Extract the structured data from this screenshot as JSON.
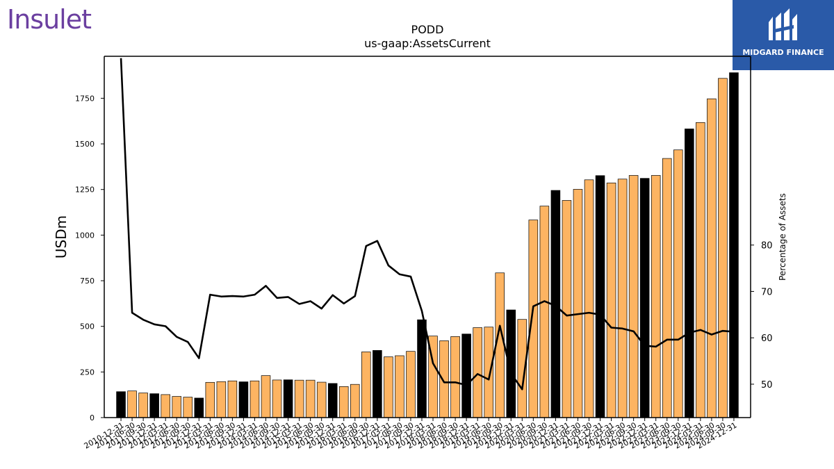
{
  "branding": {
    "left_logo": "Insulet",
    "right_logo": "MIDGARD FINANCE",
    "right_logo_bg": "#2a5aa8",
    "left_logo_color": "#6b3fa0"
  },
  "chart_data": {
    "type": "bar",
    "title": "PODD",
    "subtitle": "us-gaap:AssetsCurrent",
    "ylabel": "USDm",
    "y2label": "Percentage of Assets",
    "ylim": [
      0,
      1980
    ],
    "y2lim": [
      42.8,
      120.7
    ],
    "yticks": [
      0,
      250,
      500,
      750,
      1000,
      1250,
      1500,
      1750
    ],
    "y2ticks": [
      50,
      60,
      70,
      80
    ],
    "colors": {
      "annual": "#000000",
      "quarterly": "#fdb462",
      "line": "#000000"
    },
    "categories": [
      "2010-12-31",
      "2011-06-30",
      "2011-09-30",
      "2011-12-31",
      "2012-03-31",
      "2012-06-30",
      "2012-09-30",
      "2012-12-31",
      "2013-03-31",
      "2013-06-30",
      "2013-09-30",
      "2013-12-31",
      "2014-03-31",
      "2014-06-30",
      "2014-09-30",
      "2014-12-31",
      "2015-03-31",
      "2015-06-30",
      "2015-09-30",
      "2015-12-31",
      "2016-03-31",
      "2016-06-30",
      "2016-09-30",
      "2016-12-31",
      "2017-03-31",
      "2017-06-30",
      "2017-09-30",
      "2017-12-31",
      "2018-03-31",
      "2018-06-30",
      "2018-09-30",
      "2018-12-31",
      "2019-03-31",
      "2019-06-30",
      "2019-09-30",
      "2019-12-31",
      "2020-03-31",
      "2020-06-30",
      "2020-09-30",
      "2020-12-31",
      "2021-03-31",
      "2021-06-30",
      "2021-09-30",
      "2021-12-31",
      "2022-03-31",
      "2022-06-30",
      "2022-09-30",
      "2022-12-31",
      "2023-03-31",
      "2023-06-30",
      "2023-09-30",
      "2023-12-31",
      "2024-03-31",
      "2024-06-30",
      "2024-09-30",
      "2024-12-31"
    ],
    "x_tick_labels": [
      "2010-12-31",
      "2011-06-30",
      "2011-09-30",
      "2011-12-31",
      "2012-03-31",
      "2012-06-30",
      "2012-09-30",
      "2012-12-31",
      "2013-03-31",
      "2013-06-30",
      "2013-09-30",
      "2013-12-31",
      "2014-03-31",
      "2014-06-30",
      "2014-09-30",
      "2014-12-31",
      "2015-03-31",
      "2015-06-30",
      "2015-09-30",
      "2015-12-31",
      "2016-03-31",
      "2016-06-30",
      "2016-09-30",
      "2016-12-31",
      "2017-03-31",
      "2017-06-30",
      "2017-09-30",
      "2017-12-31",
      "2018-03-31",
      "2018-06-30",
      "2018-09-30",
      "2018-12-31",
      "2019-03-31",
      "2019-06-30",
      "2019-09-30",
      "2019-12-31",
      "2020-03-31",
      "2020-06-30",
      "2020-09-30",
      "2020-12-31",
      "2021-03-31",
      "2021-06-30",
      "2021-09-30",
      "2021-12-31",
      "2022-03-31",
      "2022-06-30",
      "2022-09-30",
      "2022-12-31",
      "2023-03-31",
      "2023-06-30",
      "2023-09-30",
      "2023-12-31",
      "2024-03-31",
      "2024-06-30",
      "2024-09-30",
      "2024-12-31"
    ],
    "is_annual": [
      true,
      false,
      false,
      true,
      false,
      false,
      false,
      true,
      false,
      false,
      false,
      true,
      false,
      false,
      false,
      true,
      false,
      false,
      false,
      true,
      false,
      false,
      false,
      true,
      false,
      false,
      false,
      true,
      false,
      false,
      false,
      true,
      false,
      false,
      false,
      true,
      false,
      false,
      false,
      true,
      false,
      false,
      false,
      true,
      false,
      false,
      false,
      true,
      false,
      false,
      false,
      true,
      false,
      false,
      false,
      true
    ],
    "series": [
      {
        "name": "AssetsCurrent",
        "values": [
          142,
          146,
          135,
          131,
          126,
          116,
          112,
          107,
          193,
          197,
          201,
          196,
          201,
          230,
          206,
          207,
          205,
          205,
          194,
          187,
          170,
          182,
          360,
          368,
          333,
          339,
          363,
          536,
          447,
          421,
          444,
          458,
          493,
          496,
          793,
          590,
          538,
          1083,
          1159,
          1245,
          1190,
          1251,
          1303,
          1326,
          1286,
          1307,
          1327,
          1311,
          1327,
          1420,
          1467,
          1582,
          1617,
          1747,
          1859,
          1890
        ]
      },
      {
        "name": "Percentage of Assets",
        "axis": "right",
        "values": [
          120.3,
          65.4,
          63.9,
          62.9,
          62.5,
          60.2,
          59.1,
          55.6,
          69.3,
          68.9,
          69.0,
          68.9,
          69.3,
          71.2,
          68.6,
          68.8,
          67.3,
          67.9,
          66.3,
          69.2,
          67.4,
          69.0,
          79.8,
          80.9,
          75.6,
          73.7,
          73.2,
          65.8,
          54.5,
          50.4,
          50.4,
          49.8,
          52.2,
          51.0,
          62.6,
          52.3,
          48.9,
          66.8,
          67.9,
          66.9,
          64.8,
          65.1,
          65.4,
          65.0,
          62.2,
          62.0,
          61.4,
          58.3,
          58.1,
          59.6,
          59.6,
          61.1,
          61.7,
          60.7,
          61.5,
          61.3
        ]
      }
    ],
    "grid": false,
    "legend": "none"
  }
}
